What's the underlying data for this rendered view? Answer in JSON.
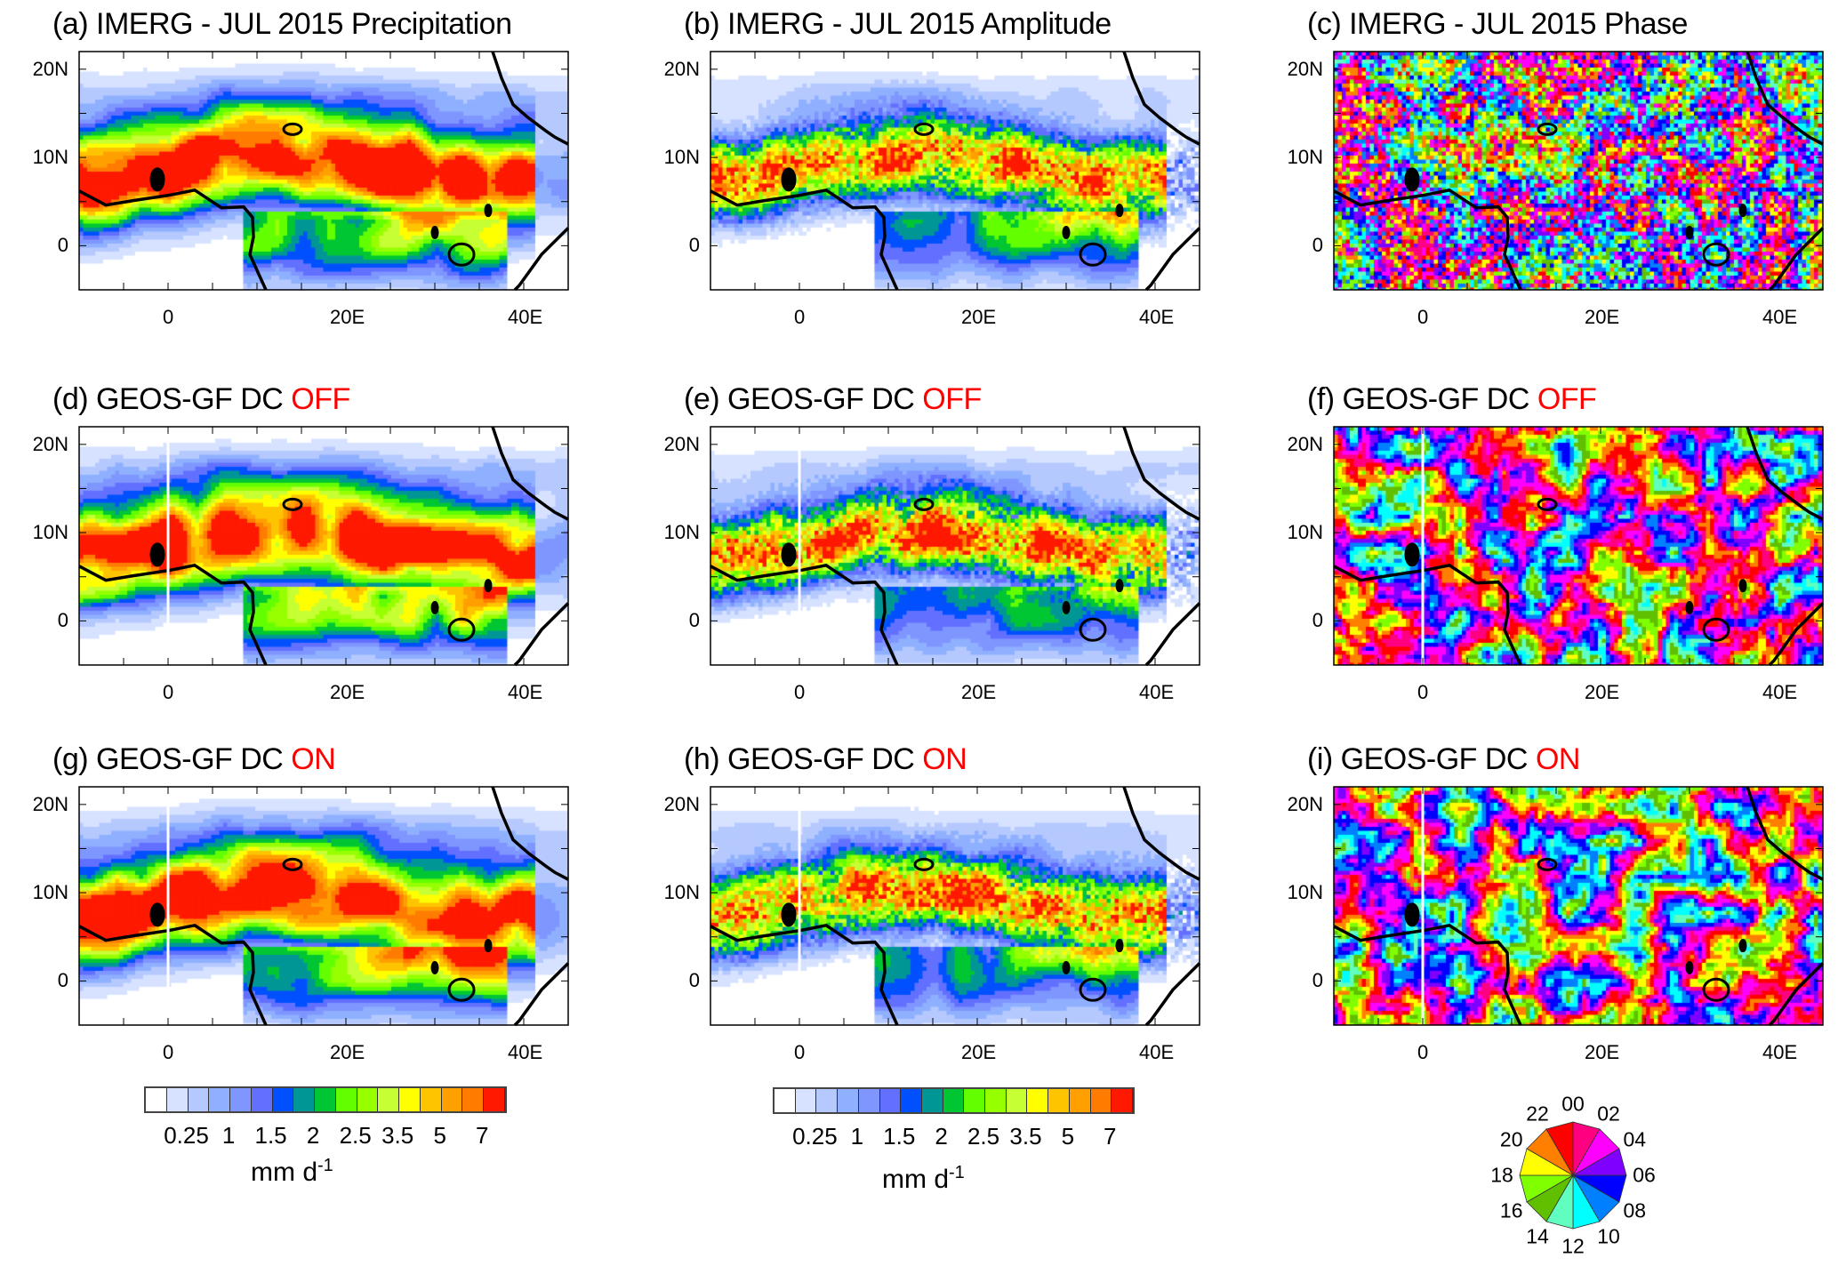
{
  "chart_data": {
    "type": "heatmap",
    "panels": [
      {
        "id": "a",
        "title": "(a) IMERG - JUL 2015 Precipitation",
        "highlight": "",
        "field": "precip",
        "meridian": false
      },
      {
        "id": "b",
        "title": "(b) IMERG - JUL 2015 Amplitude",
        "highlight": "",
        "field": "amp",
        "meridian": false
      },
      {
        "id": "c",
        "title": "(c) IMERG - JUL 2015 Phase",
        "highlight": "",
        "field": "phase",
        "meridian": false
      },
      {
        "id": "d",
        "title": "(d) GEOS-GF  DC ",
        "highlight": "OFF",
        "field": "precip",
        "meridian": true
      },
      {
        "id": "e",
        "title": "(e) GEOS-GF  DC ",
        "highlight": "OFF",
        "field": "amp",
        "meridian": true
      },
      {
        "id": "f",
        "title": "(f) GEOS-GF  DC ",
        "highlight": "OFF",
        "field": "phase",
        "meridian": true
      },
      {
        "id": "g",
        "title": "(g) GEOS-GF  DC ",
        "highlight": "ON",
        "field": "precip",
        "meridian": true
      },
      {
        "id": "h",
        "title": "(h) GEOS-GF  DC ",
        "highlight": "ON",
        "field": "amp",
        "meridian": true
      },
      {
        "id": "i",
        "title": "(i) GEOS-GF  DC ",
        "highlight": "ON",
        "field": "phase",
        "meridian": true
      }
    ],
    "lon_range": [
      -10,
      45
    ],
    "lat_range": [
      -5,
      22
    ],
    "x_ticks": [
      {
        "v": 0,
        "label": "0"
      },
      {
        "v": 20,
        "label": "20E"
      },
      {
        "v": 40,
        "label": "40E"
      }
    ],
    "y_ticks": [
      {
        "v": 20,
        "label": "20N"
      },
      {
        "v": 10,
        "label": "10N"
      },
      {
        "v": 0,
        "label": "0"
      }
    ],
    "colorbar": {
      "colors": [
        "#ffffff",
        "#d6e2ff",
        "#b5c9ff",
        "#8fb0ff",
        "#7f96ff",
        "#6370ff",
        "#0050ff",
        "#009696",
        "#00c633",
        "#63ff00",
        "#96ff00",
        "#c6ff33",
        "#ffff00",
        "#ffc400",
        "#ffa000",
        "#ff7c00",
        "#ff1900"
      ],
      "labels": [
        "0.25",
        "1",
        "1.5",
        "2",
        "2.5",
        "3.5",
        "5",
        "7"
      ],
      "units": "mm d",
      "units_exp": "-1"
    },
    "phase_wheel": {
      "labels": [
        "00",
        "02",
        "04",
        "06",
        "08",
        "10",
        "12",
        "14",
        "16",
        "18",
        "20",
        "22"
      ],
      "colors": [
        "#ff0080",
        "#ff00ff",
        "#8000ff",
        "#0000ff",
        "#0080ff",
        "#00ffff",
        "#60ffc0",
        "#60c000",
        "#80ff00",
        "#ffff00",
        "#ff8000",
        "#ff0000"
      ]
    }
  }
}
